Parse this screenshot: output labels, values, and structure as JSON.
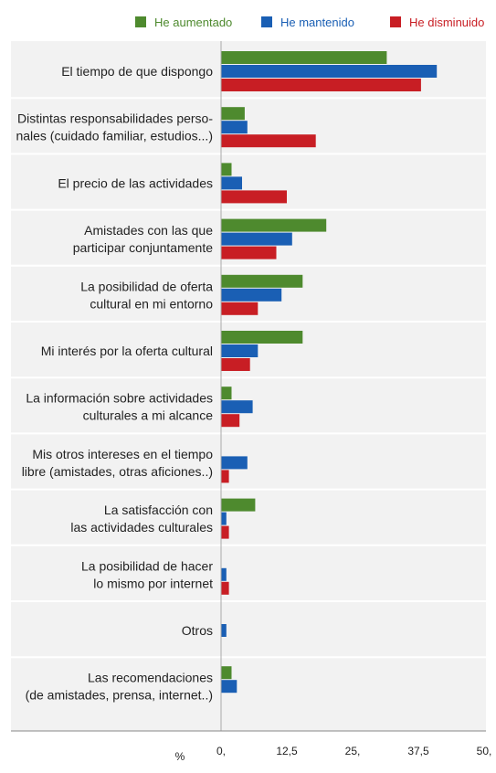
{
  "chart_data": {
    "type": "bar",
    "orientation": "horizontal",
    "xlabel": "%",
    "xlim": [
      0,
      50
    ],
    "xticks": [
      0,
      12.5,
      25,
      37.5,
      50
    ],
    "xtick_labels": [
      "0,",
      "12,5",
      "25,",
      "37,5",
      "50,"
    ],
    "legend_position": "top",
    "categories": [
      [
        "El tiempo de que dispongo"
      ],
      [
        "Distintas responsabilidades perso-",
        "nales (cuidado familiar, estudios...)"
      ],
      [
        "El precio de las actividades"
      ],
      [
        "Amistades con las que",
        "participar conjuntamente"
      ],
      [
        "La posibilidad de oferta",
        "cultural en mi entorno"
      ],
      [
        "Mi interés por la oferta cultural"
      ],
      [
        "La información sobre actividades",
        "culturales a mi alcance"
      ],
      [
        "Mis otros intereses en el tiempo",
        "libre (amistades, otras aficiones..)"
      ],
      [
        "La satisfacción con",
        "las actividades culturales"
      ],
      [
        "La posibilidad de hacer",
        "lo mismo por internet"
      ],
      [
        "Otros"
      ],
      [
        "Las recomendaciones",
        "(de amistades, prensa, internet..)"
      ]
    ],
    "series": [
      {
        "name": "He aumentado",
        "color": "#4e8a2e",
        "values": [
          31.5,
          4.5,
          2.0,
          20.0,
          15.5,
          15.5,
          2.0,
          0,
          6.5,
          0,
          0,
          2.0
        ]
      },
      {
        "name": "He mantenido",
        "color": "#1a5fb4",
        "values": [
          41.0,
          5.0,
          4.0,
          13.5,
          11.5,
          7.0,
          6.0,
          5.0,
          1.0,
          1.0,
          1.0,
          3.0
        ]
      },
      {
        "name": "He disminuido",
        "color": "#c81e24",
        "values": [
          38.0,
          18.0,
          12.5,
          10.5,
          7.0,
          5.5,
          3.5,
          1.5,
          1.5,
          1.5,
          0,
          0
        ]
      }
    ]
  }
}
